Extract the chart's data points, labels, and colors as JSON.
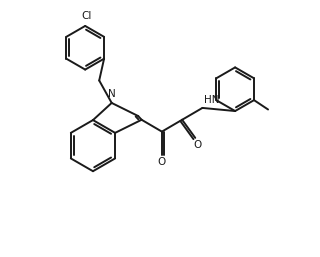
{
  "background_color": "#ffffff",
  "line_color": "#1a1a1a",
  "line_width": 1.4,
  "figure_size": [
    3.2,
    2.57
  ],
  "dpi": 100,
  "atoms": {
    "N_label": "N",
    "Cl_label": "Cl",
    "HN_label": "HN",
    "O1_label": "O",
    "O2_label": "O"
  }
}
